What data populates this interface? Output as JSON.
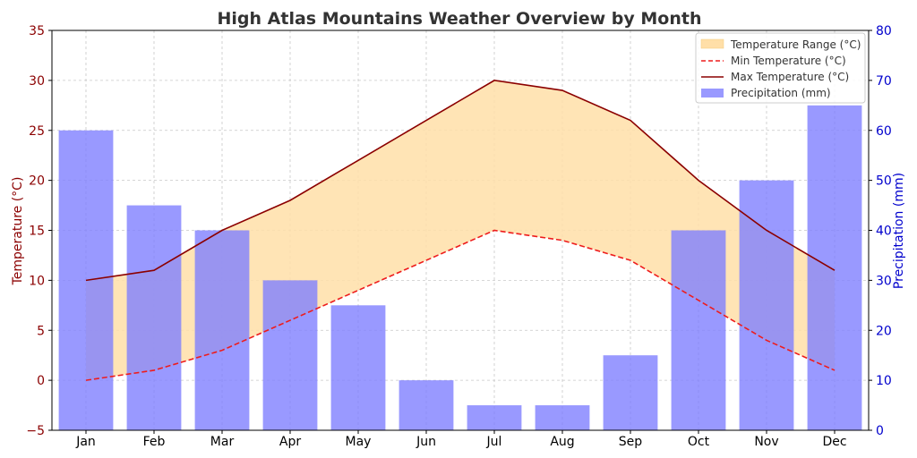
{
  "chart_data": {
    "type": "bar",
    "title": "High Atlas Mountains Weather Overview by Month",
    "categories": [
      "Jan",
      "Feb",
      "Mar",
      "Apr",
      "May",
      "Jun",
      "Jul",
      "Aug",
      "Sep",
      "Oct",
      "Nov",
      "Dec"
    ],
    "series": [
      {
        "name": "Temperature Range (°C)",
        "kind": "area",
        "axis": "left",
        "lower": "Min Temperature (°C)",
        "upper": "Max Temperature (°C)",
        "color": "#ffdfa8"
      },
      {
        "name": "Min Temperature (°C)",
        "kind": "line",
        "axis": "left",
        "style": "dashed",
        "color": "#ee1c1c",
        "values": [
          0,
          1,
          3,
          6,
          9,
          12,
          15,
          14,
          12,
          8,
          4,
          1
        ]
      },
      {
        "name": "Max Temperature (°C)",
        "kind": "line",
        "axis": "left",
        "style": "solid",
        "color": "#8b0000",
        "values": [
          10,
          11,
          15,
          18,
          22,
          26,
          30,
          29,
          26,
          20,
          15,
          11
        ]
      },
      {
        "name": "Precipitation (mm)",
        "kind": "bar",
        "axis": "right",
        "color": "#7f7fff",
        "values": [
          60,
          45,
          40,
          30,
          25,
          10,
          5,
          5,
          15,
          40,
          50,
          65
        ]
      }
    ],
    "ylabel": "Temperature (°C)",
    "ylim": [
      -5,
      35
    ],
    "yticks": [
      -5,
      0,
      5,
      10,
      15,
      20,
      25,
      30,
      35
    ],
    "y2label": "Precipitation (mm)",
    "y2lim": [
      0,
      80
    ],
    "y2ticks": [
      0,
      10,
      20,
      30,
      40,
      50,
      60,
      70,
      80
    ],
    "grid": true,
    "legend_position": "top-right",
    "colors": {
      "left_axis": "#8b0000",
      "right_axis": "#0000cd"
    }
  }
}
